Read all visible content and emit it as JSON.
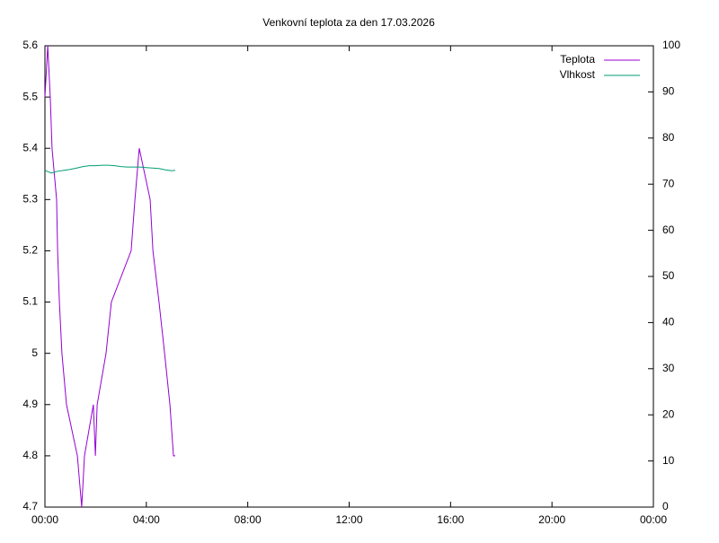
{
  "chart_data": {
    "type": "line",
    "title": "Venkovní teplota za den 17.03.2026",
    "xlim": [
      0,
      24
    ],
    "xticks": [
      {
        "value": 0,
        "label": "00:00"
      },
      {
        "value": 4,
        "label": "04:00"
      },
      {
        "value": 8,
        "label": "08:00"
      },
      {
        "value": 12,
        "label": "12:00"
      },
      {
        "value": 16,
        "label": "16:00"
      },
      {
        "value": 20,
        "label": "20:00"
      },
      {
        "value": 24,
        "label": "00:00"
      }
    ],
    "ylim": [
      4.7,
      5.6
    ],
    "yticks": [
      4.7,
      4.8,
      4.9,
      5,
      5.1,
      5.2,
      5.3,
      5.4,
      5.5,
      5.6
    ],
    "y2lim": [
      0,
      100
    ],
    "y2ticks": [
      0,
      10,
      20,
      30,
      40,
      50,
      60,
      70,
      80,
      90,
      100
    ],
    "legend": "top-right",
    "series": [
      {
        "name": "Teplota",
        "color": "#9400d3",
        "x": [
          0,
          0.11,
          0.21,
          0.28,
          0.46,
          0.5,
          0.57,
          0.67,
          0.85,
          1.28,
          1.45,
          1.56,
          1.91,
          1.99,
          2.06,
          2.41,
          2.62,
          3.4,
          3.55,
          3.72,
          4.15,
          4.26,
          4.5,
          4.72,
          4.93,
          5.07,
          5.14
        ],
        "values": [
          5.5,
          5.6,
          5.5,
          5.4,
          5.3,
          5.2,
          5.1,
          5.0,
          4.9,
          4.8,
          4.7,
          4.8,
          4.9,
          4.8,
          4.9,
          5.0,
          5.1,
          5.2,
          5.3,
          5.4,
          5.3,
          5.2,
          5.1,
          5.0,
          4.9,
          4.8,
          4.8
        ]
      },
      {
        "name": "Vlhkost",
        "color": "#009e73",
        "axis": "y2",
        "x": [
          0,
          0.25,
          0.5,
          0.75,
          1,
          1.25,
          1.5,
          1.75,
          2,
          2.25,
          2.5,
          2.75,
          3,
          3.25,
          3.5,
          3.75,
          4,
          4.25,
          4.5,
          4.75,
          5,
          5.14
        ],
        "values": [
          73,
          72.4,
          72.8,
          73,
          73.2,
          73.5,
          73.8,
          74,
          74,
          74.1,
          74.1,
          74,
          73.8,
          73.7,
          73.7,
          73.7,
          73.6,
          73.5,
          73.4,
          73.1,
          72.9,
          73
        ]
      }
    ]
  }
}
